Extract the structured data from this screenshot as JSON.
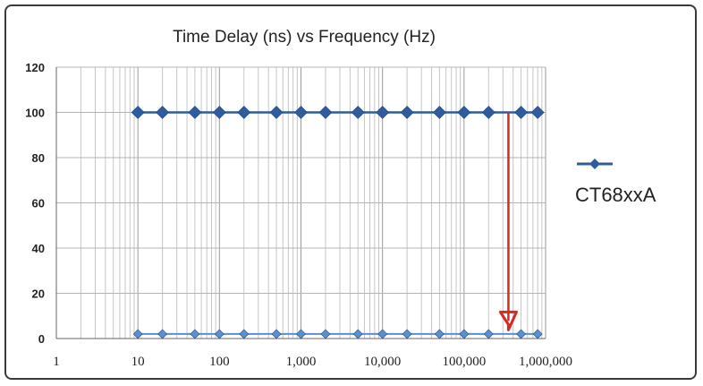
{
  "chart_data": {
    "type": "line",
    "title": "Time Delay (ns) vs Frequency (Hz)",
    "xlabel": "",
    "ylabel": "",
    "x_scale": "log",
    "xlim": [
      1,
      1000000
    ],
    "ylim": [
      0,
      120
    ],
    "grid": true,
    "legend_position": "right",
    "y_ticks": [
      0,
      20,
      40,
      60,
      80,
      100,
      120
    ],
    "y_tick_labels": [
      "0",
      "20",
      "40",
      "60",
      "80",
      "100",
      "120"
    ],
    "x_ticks": [
      1,
      10,
      100,
      1000,
      10000,
      100000,
      1000000
    ],
    "x_tick_labels": [
      "1",
      "10",
      "100",
      "1,000",
      "10,000",
      "100,000",
      "1,000,000"
    ],
    "x": [
      10,
      20,
      50,
      100,
      200,
      500,
      1000,
      2000,
      5000,
      10000,
      20000,
      50000,
      100000,
      200000,
      500000,
      800000
    ],
    "series": [
      {
        "name": "CT68xxA",
        "color": "#2e5c9c",
        "values": [
          100,
          100,
          100,
          100,
          100,
          100,
          100,
          100,
          100,
          100,
          100,
          100,
          100,
          100,
          100,
          100
        ]
      },
      {
        "name": "",
        "color": "#5b8fd0",
        "values": [
          2,
          2,
          2,
          2,
          2,
          2,
          2,
          2,
          2,
          2,
          2,
          2,
          2,
          2,
          2,
          2
        ]
      }
    ],
    "annotations": [
      {
        "type": "arrow",
        "color": "#d42a20",
        "x": 350000,
        "y_from": 100,
        "y_to": 3
      }
    ]
  }
}
